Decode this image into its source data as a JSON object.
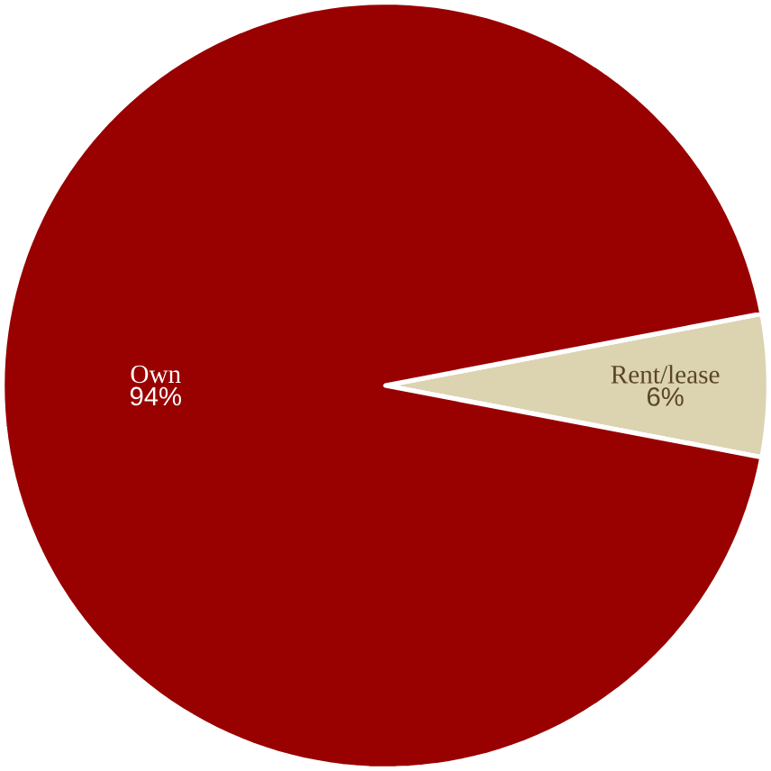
{
  "chart_data": {
    "type": "pie",
    "categories": [
      "Own",
      "Rent/lease"
    ],
    "values": [
      94,
      6
    ],
    "value_labels": [
      "94%",
      "6%"
    ],
    "colors": [
      "#990000",
      "#dcd3b0"
    ]
  }
}
